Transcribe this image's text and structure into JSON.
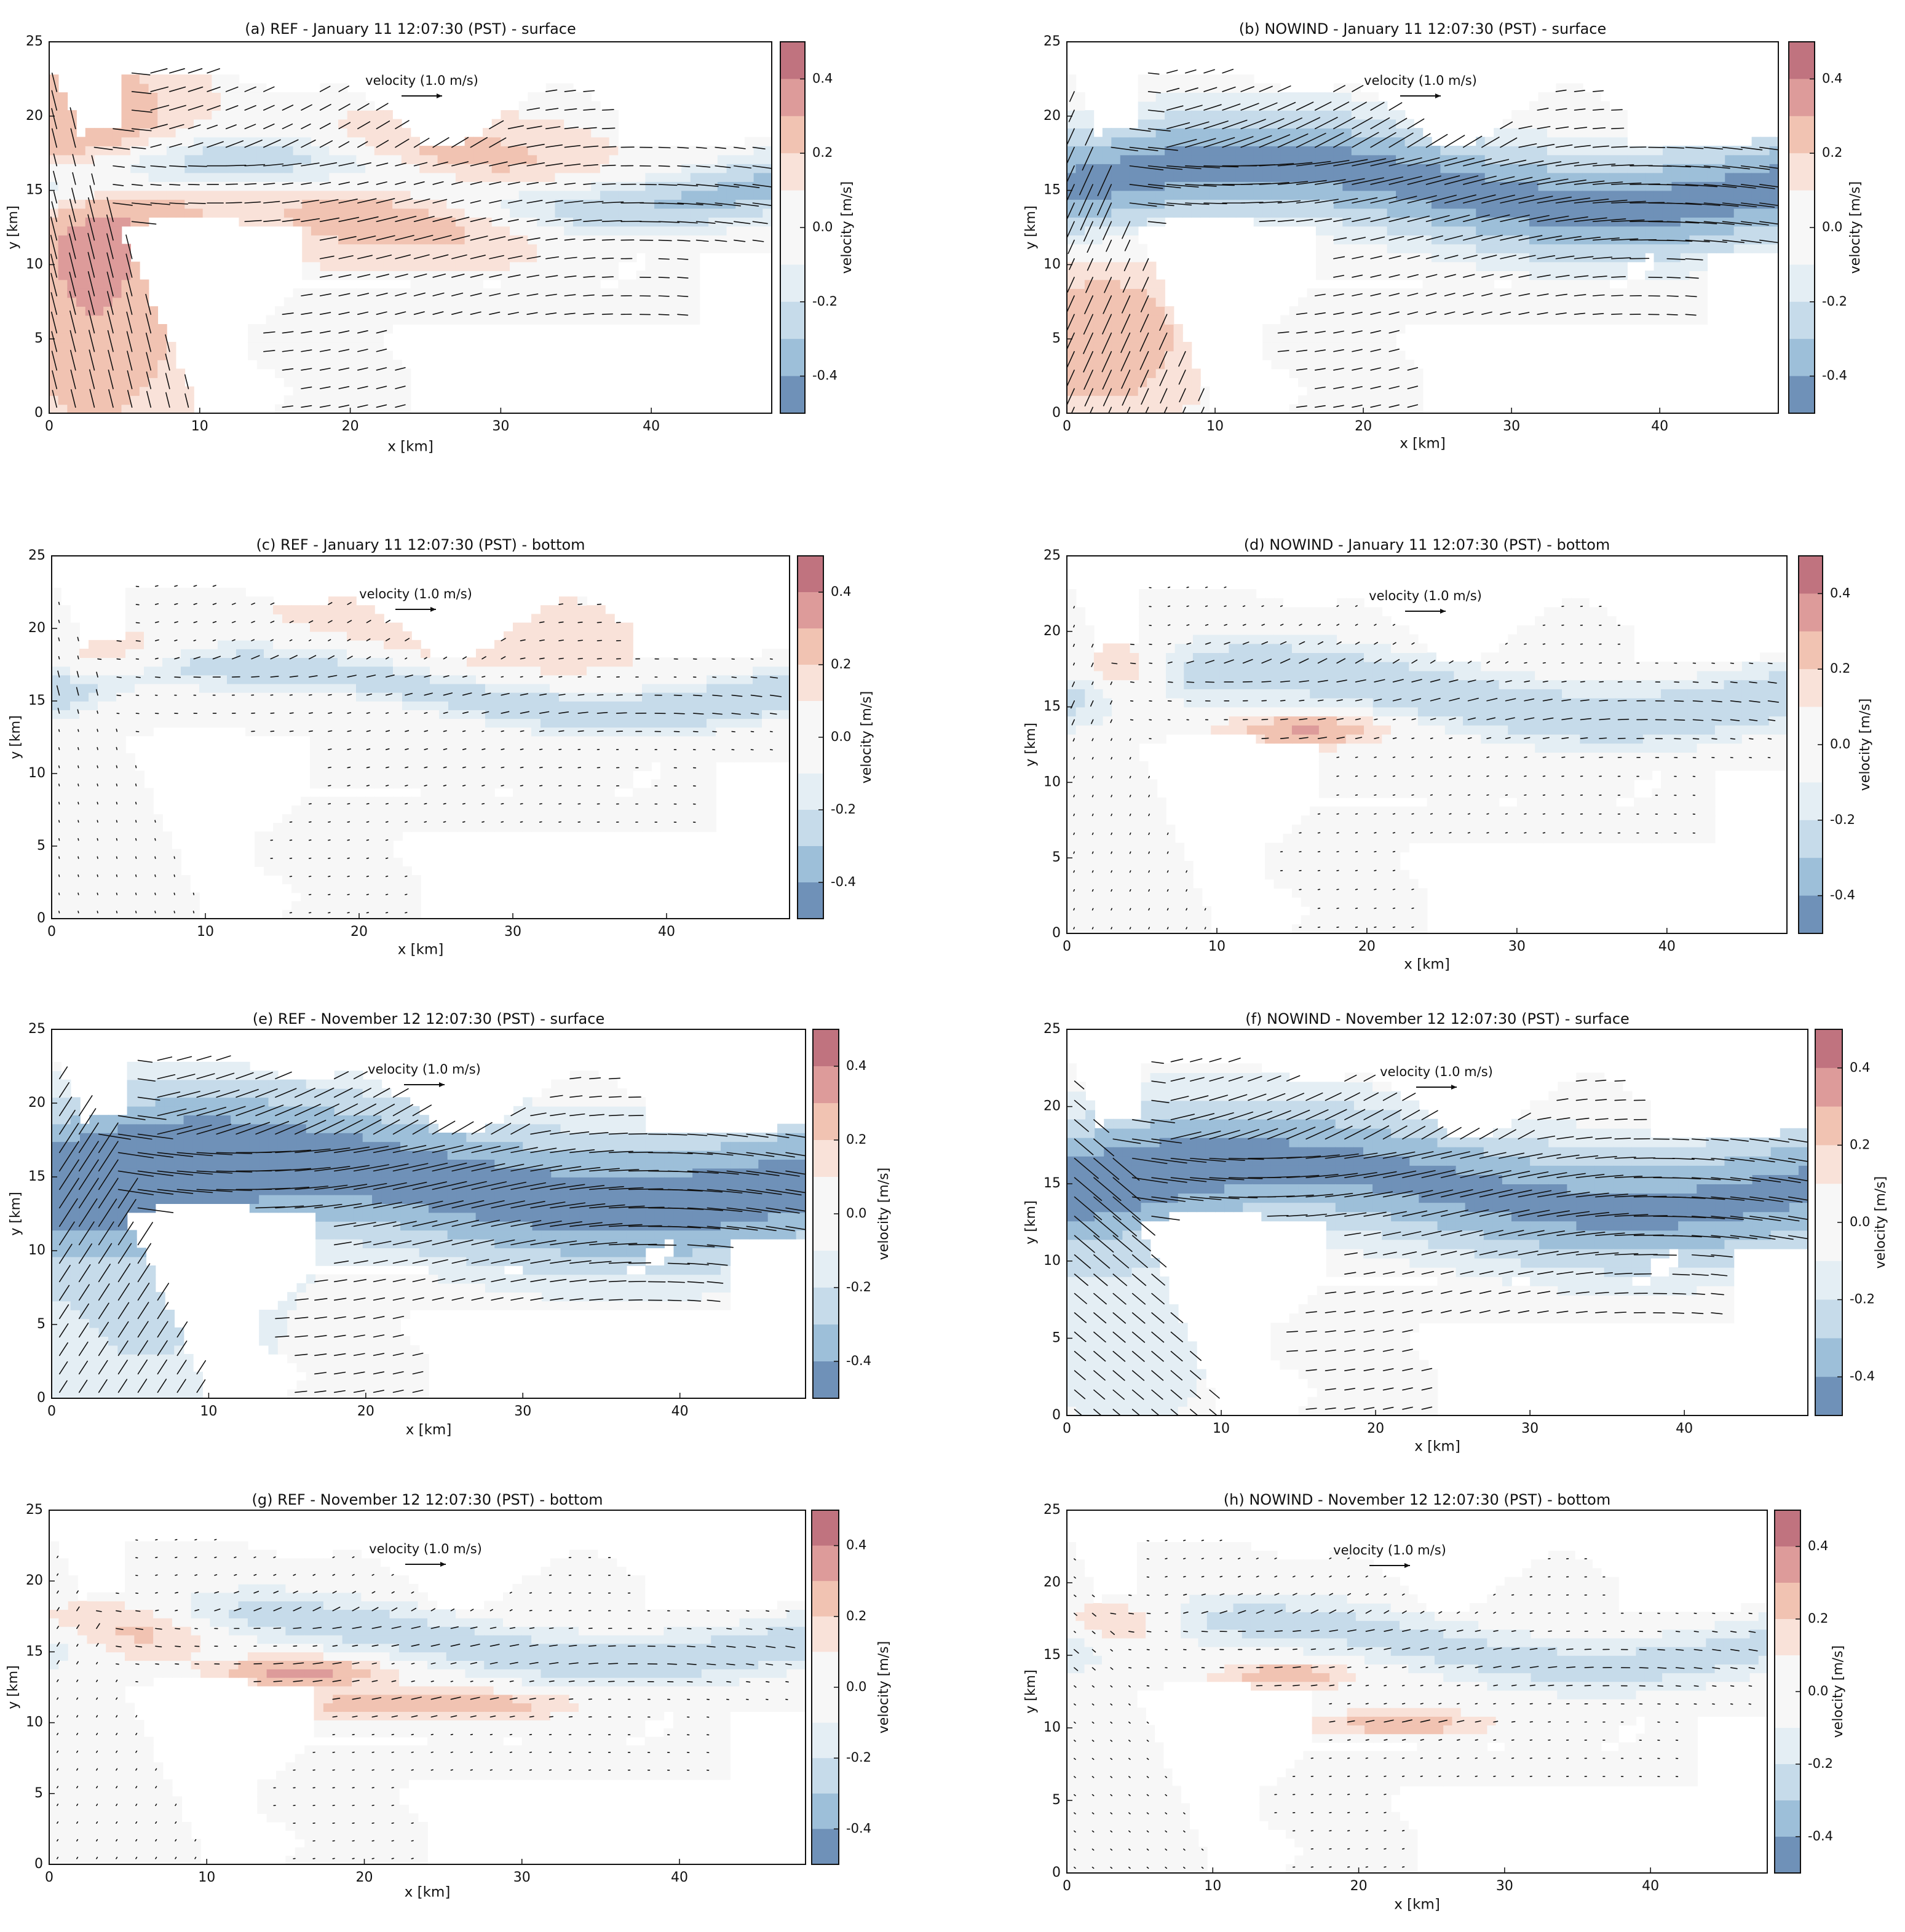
{
  "figure": {
    "shared": {
      "xlabel": "x [km]",
      "ylabel": "y [km]",
      "x_range": [
        0,
        48
      ],
      "y_range": [
        0,
        25
      ],
      "x_ticks": [
        0,
        10,
        20,
        30,
        40
      ],
      "y_ticks": [
        0,
        5,
        10,
        15,
        20,
        25
      ],
      "colorbar_label": "velocity   [m/s]",
      "colorbar_label_compact": "velocity [m/s]",
      "colorbar_ticks": [
        "0.4",
        "0.2",
        "0.0",
        "-0.2",
        "-0.4"
      ],
      "colorbar_levels": [
        0.5,
        0.4,
        0.3,
        0.2,
        0.1,
        0.0,
        -0.1,
        -0.2,
        -0.3,
        -0.4,
        -0.5
      ],
      "velocity_reference_label": "velocity (1.0 m/s)",
      "colors": {
        "strong_red": "#c0737f",
        "red": "#dd9b9a",
        "light_red": "#f1c3b2",
        "pale_red": "#f9e2d9",
        "neutral": "#f7f7f7",
        "pale_blue": "#e4eef4",
        "light_blue": "#c6dbea",
        "blue": "#9dbfd9",
        "strong_blue": "#6f91b8",
        "arrow": "#111111",
        "axis": "#111111"
      }
    }
  },
  "chart_data": [
    {
      "type": "quiver",
      "panel": "a",
      "title": "(a) REF - January 11 12:07:30 (PST)  - surface",
      "xlabel": "x [km]",
      "ylabel": "y [km]",
      "xlim": [
        0,
        48
      ],
      "ylim": [
        0,
        25
      ],
      "colorbar_label": "velocity   [m/s]",
      "colorbar_range": [
        -0.5,
        0.5
      ],
      "reference_vector": "velocity (1.0 m/s)",
      "velocity_field": "surface flow with positive velocity on the western shelf and central shoal, negative jet around y = 15–17 km"
    },
    {
      "type": "quiver",
      "panel": "b",
      "title": "(b) NOWIND - January 11 12:07:30 (PST)  - surface",
      "xlabel": "x [km]",
      "ylabel": "y [km]",
      "xlim": [
        0,
        48
      ],
      "ylim": [
        0,
        25
      ],
      "colorbar_label": "velocity   [m/s]",
      "colorbar_range": [
        -0.5,
        0.5
      ],
      "reference_vector": "velocity (1.0 m/s)",
      "velocity_field": "surface flow dominated by a strong negative jet from x = 0 to 48 km"
    },
    {
      "type": "quiver",
      "panel": "c",
      "title": "(c) REF - January 11 12:07:30 (PST)  - bottom",
      "xlabel": "x [km]",
      "ylabel": "y [km]",
      "xlim": [
        0,
        48
      ],
      "ylim": [
        0,
        25
      ],
      "colorbar_label": "velocity   [m/s]",
      "colorbar_range": [
        -0.5,
        0.5
      ],
      "reference_vector": "velocity (1.0 m/s)",
      "velocity_field": "bottom flow weak over most of the domain with negative channel flow near y = 15–17 km"
    },
    {
      "type": "quiver",
      "panel": "d",
      "title": "(d) NOWIND - January 11 12:07:30 (PST) - bottom",
      "xlabel": "x [km]",
      "ylabel": "y [km]",
      "xlim": [
        0,
        48
      ],
      "ylim": [
        0,
        25
      ],
      "colorbar_label": "velocity   [m/s]",
      "colorbar_range": [
        -0.5,
        0.5
      ],
      "reference_vector": "velocity (1.0 m/s)",
      "velocity_field": "bottom flow with positive cores near x = 4 and x = 16 km"
    },
    {
      "type": "quiver",
      "panel": "e",
      "title": "(e) REF - November 12 12:07:30 (PST) - surface",
      "xlabel": "x [km]",
      "ylabel": "y [km]",
      "xlim": [
        0,
        48
      ],
      "ylim": [
        0,
        25
      ],
      "colorbar_label": "velocity [m/s]",
      "colorbar_range": [
        -0.5,
        0.5
      ],
      "reference_vector": "velocity (1.0 m/s)",
      "velocity_field": "surface flow with a broad, very strong negative jet"
    },
    {
      "type": "quiver",
      "panel": "f",
      "title": "(f) NOWIND - November 12  12:07:30 (PST) - surface",
      "xlabel": "x [km]",
      "ylabel": "y [km]",
      "xlim": [
        0,
        48
      ],
      "ylim": [
        0,
        25
      ],
      "colorbar_label": "velocity [m/s]",
      "colorbar_range": [
        -0.5,
        0.5
      ],
      "reference_vector": "velocity (1.0 m/s)",
      "velocity_field": "surface flow with strong negative jet, slightly narrower than panel e"
    },
    {
      "type": "quiver",
      "panel": "g",
      "title": "(g) REF - November 12  12:07:30 (PST)  - bottom",
      "xlabel": "x [km]",
      "ylabel": "y [km]",
      "xlim": [
        0,
        48
      ],
      "ylim": [
        0,
        25
      ],
      "colorbar_label": "velocity [m/s]",
      "colorbar_range": [
        -0.5,
        0.5
      ],
      "reference_vector": "velocity (1.0 m/s)",
      "velocity_field": "bottom flow with positive cores near x = 4, 15, 20 and 25 km"
    },
    {
      "type": "quiver",
      "panel": "h",
      "title": "(h) NOWIND - November 12 12:07:30 (PST)  - bottom",
      "xlabel": "x [km]",
      "ylabel": "y [km]",
      "xlim": [
        0,
        48
      ],
      "ylim": [
        0,
        25
      ],
      "colorbar_label": "velocity [m/s]",
      "colorbar_range": [
        -0.5,
        0.5
      ],
      "reference_vector": "velocity (1.0 m/s)",
      "velocity_field": "bottom flow similar to panel g with weaker positive cores"
    }
  ]
}
